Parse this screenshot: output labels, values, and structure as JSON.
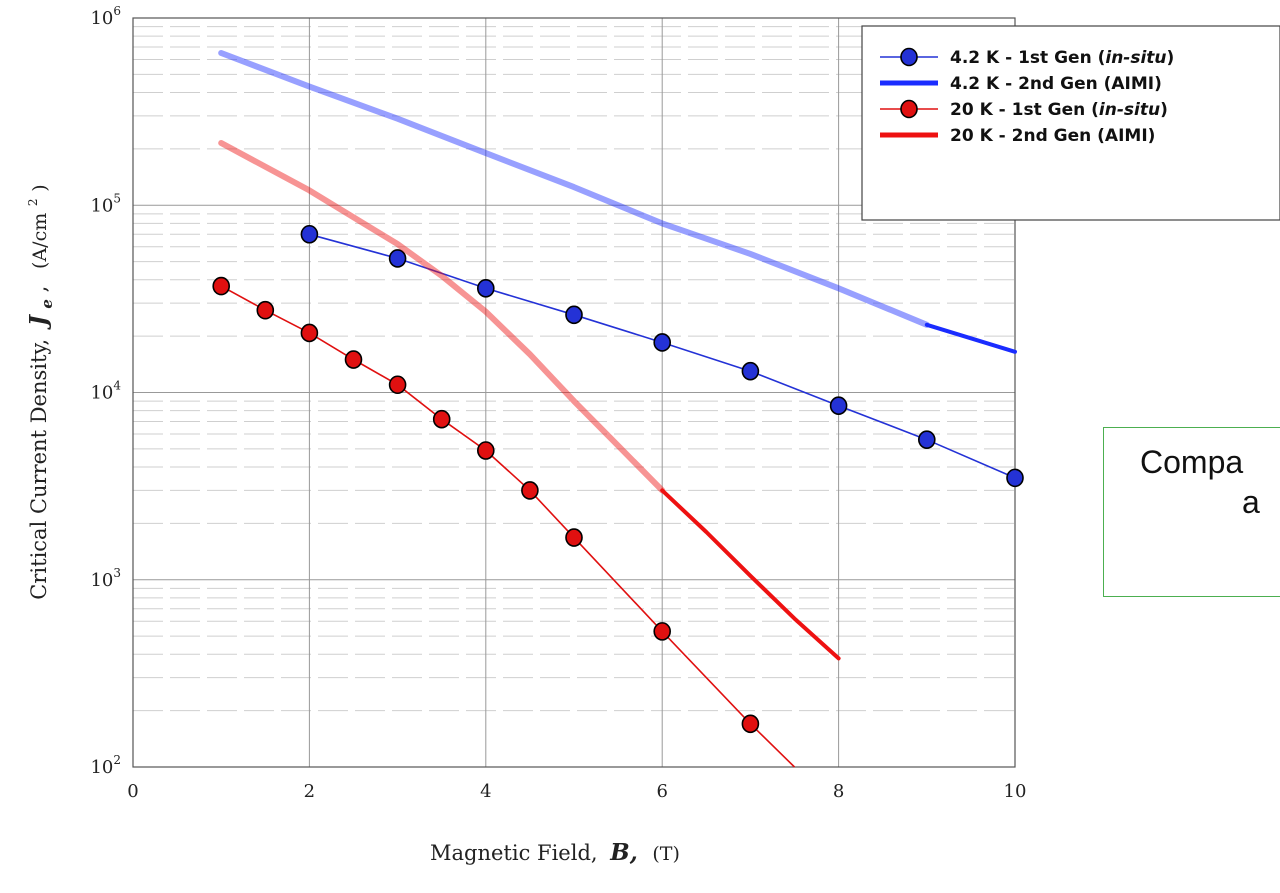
{
  "chart_data": {
    "type": "line",
    "y_scale": "log",
    "xlabel": "Magnetic Field,",
    "xlabel_symbol": "B,",
    "xlabel_unit": "(T)",
    "ylabel": "Critical Current Density,",
    "ylabel_symbol": "J",
    "ylabel_subscript": "e",
    "ylabel_unit_prefix": "(A/cm",
    "ylabel_unit_exp": "2",
    "ylabel_unit_suffix": ")",
    "xlim": [
      0,
      10
    ],
    "ylim": [
      100,
      1000000
    ],
    "x_ticks": [
      "0",
      "2",
      "4",
      "6",
      "8",
      "10"
    ],
    "y_ticks": [
      {
        "base": "10",
        "exp": "2"
      },
      {
        "base": "10",
        "exp": "3"
      },
      {
        "base": "10",
        "exp": "4"
      },
      {
        "base": "10",
        "exp": "5"
      },
      {
        "base": "10",
        "exp": "6"
      }
    ],
    "grid": true,
    "legend_position": "top-right",
    "series": [
      {
        "name": "4.2 K - 1st Gen (in-situ)",
        "name_plain": "4.2 K - 1st Gen (",
        "name_italic": "in-situ",
        "name_close": ")",
        "color": "#2432d6",
        "style": "line-marker",
        "x": [
          2,
          3,
          4,
          5,
          6,
          7,
          8,
          9,
          10
        ],
        "y": [
          70000,
          52000,
          36000,
          26000,
          18500,
          13000,
          8500,
          5600,
          3500
        ]
      },
      {
        "name": "4.2 K - 2nd Gen (AIMI)",
        "name_plain": "4.2 K - 2nd Gen (AIMI)",
        "color": "#1a2cff",
        "style": "thick-line",
        "x": [
          1,
          2,
          3,
          4,
          5,
          6,
          7,
          8,
          9,
          10
        ],
        "y": [
          650000,
          430000,
          290000,
          190000,
          125000,
          80000,
          55000,
          36000,
          23000,
          16500
        ],
        "solid_from": 9
      },
      {
        "name": "20 K - 1st Gen (in-situ)",
        "name_plain": "20 K - 1st Gen (",
        "name_italic": "in-situ",
        "name_close": ")",
        "color": "#e01010",
        "style": "line-marker",
        "x": [
          1,
          1.5,
          2,
          2.5,
          3,
          3.5,
          4,
          4.5,
          5,
          6,
          7,
          7.5
        ],
        "y": [
          37000,
          27500,
          20800,
          15000,
          11000,
          7200,
          4900,
          3000,
          1680,
          530,
          170,
          100
        ],
        "markers": [
          true,
          true,
          true,
          true,
          true,
          true,
          true,
          true,
          true,
          true,
          true,
          false
        ]
      },
      {
        "name": "20 K - 2nd Gen (AIMI)",
        "name_plain": "20 K - 2nd Gen (AIMI)",
        "color": "#ee1111",
        "style": "thick-line",
        "x": [
          1,
          2,
          3,
          3.5,
          4,
          4.5,
          5,
          5.5,
          6,
          6.5,
          7,
          7.5,
          8
        ],
        "y": [
          215000,
          120000,
          62000,
          42000,
          27000,
          16000,
          9000,
          5200,
          3000,
          1800,
          1050,
          620,
          380
        ],
        "solid_from": 6
      }
    ]
  },
  "annotation": {
    "line1": "Compa",
    "line2": "a"
  }
}
